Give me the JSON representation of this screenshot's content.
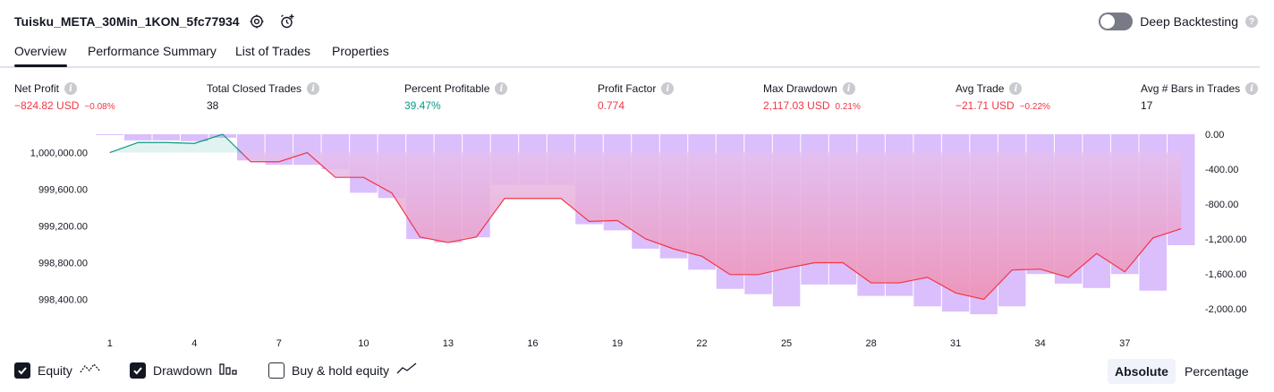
{
  "header": {
    "title": "Tuisku_META_30Min_1KON_5fc77934",
    "settings_icon": "gear-icon",
    "alert_icon": "alarm-clock-plus-icon",
    "deep_backtesting_label": "Deep Backtesting",
    "deep_backtesting_help": "?"
  },
  "tabs": [
    {
      "label": "Overview",
      "active": true
    },
    {
      "label": "Performance Summary",
      "active": false
    },
    {
      "label": "List of Trades",
      "active": false
    },
    {
      "label": "Properties",
      "active": false
    }
  ],
  "stats": [
    {
      "label": "Net Profit",
      "value": "−824.82 USD",
      "pct": "−0.08%",
      "color": "#f23645"
    },
    {
      "label": "Total Closed Trades",
      "value": "38",
      "pct": "",
      "color": "#131722"
    },
    {
      "label": "Percent Profitable",
      "value": "39.47%",
      "pct": "",
      "color": "#089981"
    },
    {
      "label": "Profit Factor",
      "value": "0.774",
      "pct": "",
      "color": "#f23645"
    },
    {
      "label": "Max Drawdown",
      "value": "2,117.03 USD",
      "pct": "0.21%",
      "color": "#f23645"
    },
    {
      "label": "Avg Trade",
      "value": "−21.71 USD",
      "pct": "−0.22%",
      "color": "#f23645"
    },
    {
      "label": "Avg # Bars in Trades",
      "value": "17",
      "pct": "",
      "color": "#131722"
    }
  ],
  "chart_data": {
    "type": "line",
    "x": [
      1,
      2,
      3,
      4,
      5,
      6,
      7,
      8,
      9,
      10,
      11,
      12,
      13,
      14,
      15,
      16,
      17,
      18,
      19,
      20,
      21,
      22,
      23,
      24,
      25,
      26,
      27,
      28,
      29,
      30,
      31,
      32,
      33,
      34,
      35,
      36,
      37,
      38,
      39
    ],
    "x_tick_labels": [
      "1",
      "4",
      "7",
      "10",
      "13",
      "16",
      "19",
      "22",
      "25",
      "28",
      "31",
      "34",
      "37"
    ],
    "y_left_tick_labels": [
      "1,000,000.00",
      "999,600.00",
      "999,200.00",
      "998,800.00",
      "998,400.00"
    ],
    "y_left_ticks": [
      1000000,
      999600,
      999200,
      998800,
      998400
    ],
    "y_left_range": [
      998200,
      1000200
    ],
    "y_right_tick_labels": [
      "0.00",
      "-400.00",
      "-800.00",
      "-1,200.00",
      "-1,600.00",
      "-2,000.00"
    ],
    "y_right_ticks": [
      0,
      -400,
      -800,
      -1200,
      -1600,
      -2000
    ],
    "y_right_range": [
      -2100,
      0
    ],
    "series": [
      {
        "name": "Equity",
        "axis": "left",
        "values": [
          1000000,
          1000110,
          1000110,
          1000100,
          1000200,
          999900,
          999900,
          1000000,
          999730,
          999730,
          999560,
          999080,
          999020,
          999080,
          999500,
          999500,
          999500,
          999250,
          999260,
          999060,
          998950,
          998870,
          998670,
          998670,
          998740,
          998800,
          998800,
          998580,
          998580,
          998640,
          998470,
          998400,
          998720,
          998730,
          998640,
          998900,
          998700,
          999070,
          999170
        ]
      },
      {
        "name": "Drawdown",
        "axis": "right",
        "values": [
          -10,
          -70,
          -70,
          -80,
          -40,
          -300,
          -350,
          -350,
          -400,
          -670,
          -730,
          -1200,
          -1240,
          -1180,
          -580,
          -580,
          -580,
          -1030,
          -1100,
          -1310,
          -1420,
          -1550,
          -1770,
          -1830,
          -1970,
          -1720,
          -1720,
          -1850,
          -1850,
          -1970,
          -2030,
          -2060,
          -1970,
          -1600,
          -1710,
          -1760,
          -1600,
          -1790,
          -1270
        ]
      }
    ],
    "colors": {
      "equity_up": "#089981",
      "equity_down": "#f23645",
      "equity_fill_up": "#089981",
      "equity_fill_down": "#f23645",
      "drawdown_bar": "#cfa8fb"
    }
  },
  "legend": [
    {
      "label": "Equity",
      "checked": true,
      "icon": "equity-line-icon"
    },
    {
      "label": "Drawdown",
      "checked": true,
      "icon": "drawdown-bars-icon"
    },
    {
      "label": "Buy & hold equity",
      "checked": false,
      "icon": "buy-hold-line-icon"
    }
  ],
  "modes": [
    {
      "label": "Absolute",
      "active": true
    },
    {
      "label": "Percentage",
      "active": false
    }
  ]
}
